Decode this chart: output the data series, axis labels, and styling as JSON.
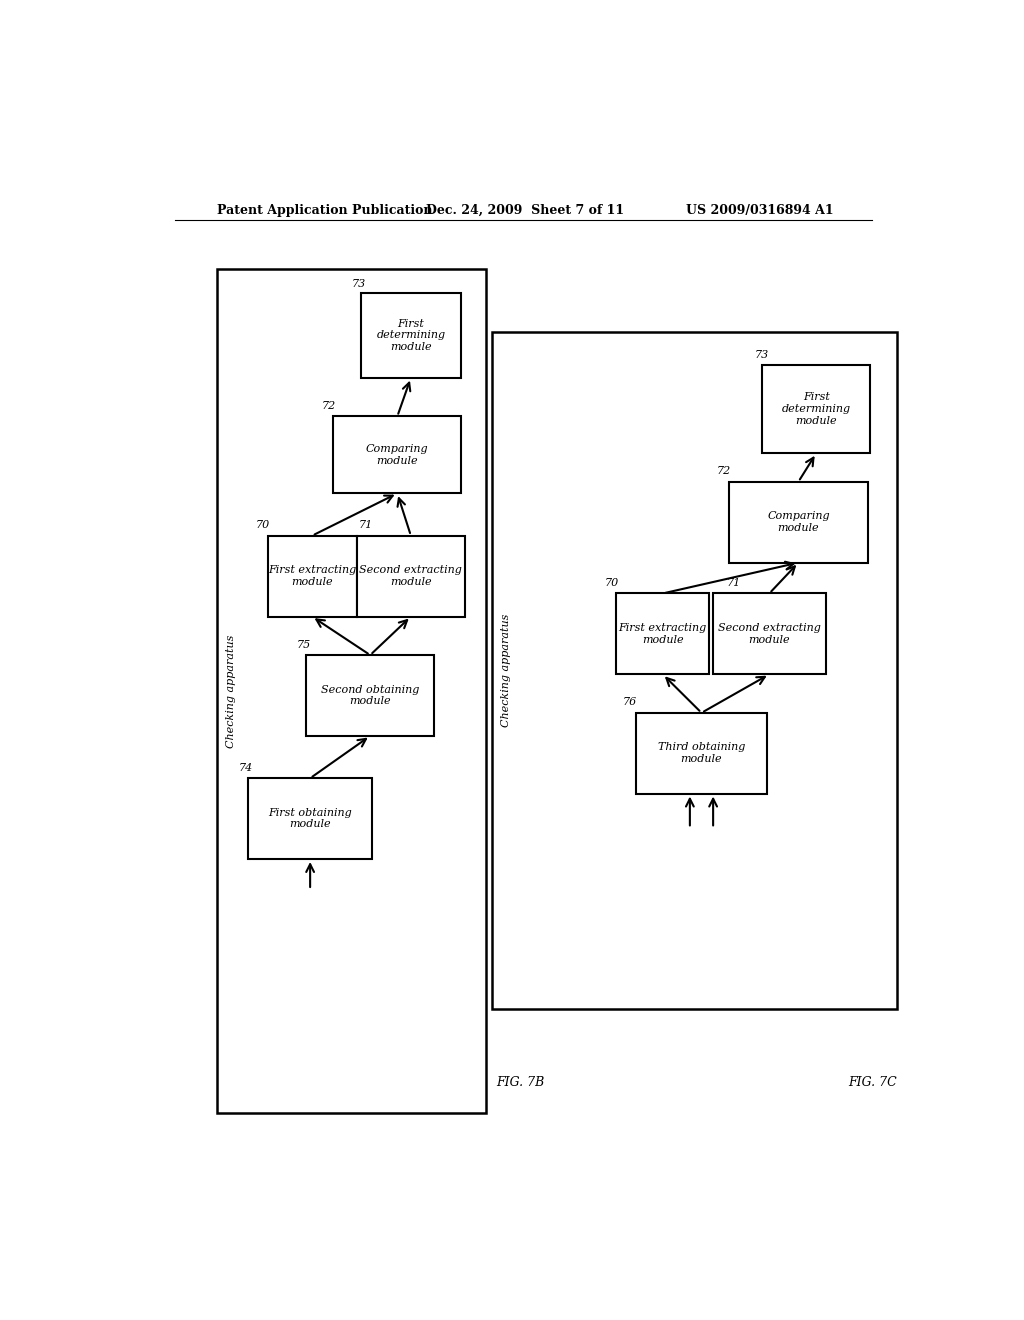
{
  "bg_color": "#ffffff",
  "header_left": "Patent Application Publication",
  "header_center": "Dec. 24, 2009  Sheet 7 of 11",
  "header_right": "US 2009/0316894 A1",
  "fig7b_label": "FIG. 7B",
  "fig7c_label": "FIG. 7C"
}
